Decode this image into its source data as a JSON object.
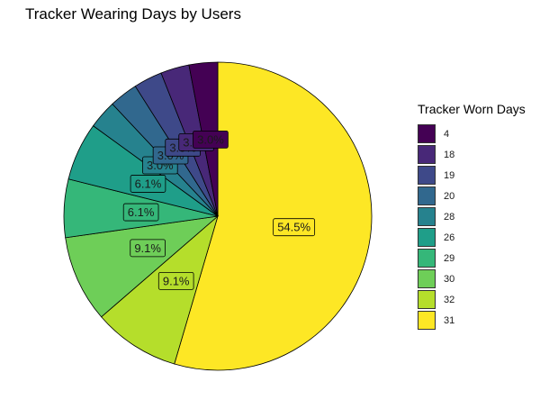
{
  "chart_data": {
    "type": "pie",
    "title": "Tracker Wearing Days by Users",
    "legend_title": "Tracker Worn Days",
    "legend_position": "right",
    "slices": [
      {
        "category": "31",
        "value": 54.5,
        "label": "54.5%",
        "color": "#fde725"
      },
      {
        "category": "32",
        "value": 9.1,
        "label": "9.1%",
        "color": "#b5de2b"
      },
      {
        "category": "30",
        "value": 9.1,
        "label": "9.1%",
        "color": "#6ece58"
      },
      {
        "category": "29",
        "value": 6.1,
        "label": "6.1%",
        "color": "#35b779"
      },
      {
        "category": "26",
        "value": 6.1,
        "label": "6.1%",
        "color": "#1f9e89"
      },
      {
        "category": "28",
        "value": 3.0,
        "label": "3.0%",
        "color": "#26828e"
      },
      {
        "category": "20",
        "value": 3.0,
        "label": "3.0%",
        "color": "#31688e"
      },
      {
        "category": "19",
        "value": 3.0,
        "label": "3.0%",
        "color": "#3e4989"
      },
      {
        "category": "18",
        "value": 3.0,
        "label": "3.0%",
        "color": "#482878"
      },
      {
        "category": "4",
        "value": 3.0,
        "label": "3.0%",
        "color": "#440154"
      }
    ],
    "legend_order": [
      "4",
      "18",
      "19",
      "20",
      "28",
      "26",
      "29",
      "30",
      "32",
      "31"
    ]
  }
}
